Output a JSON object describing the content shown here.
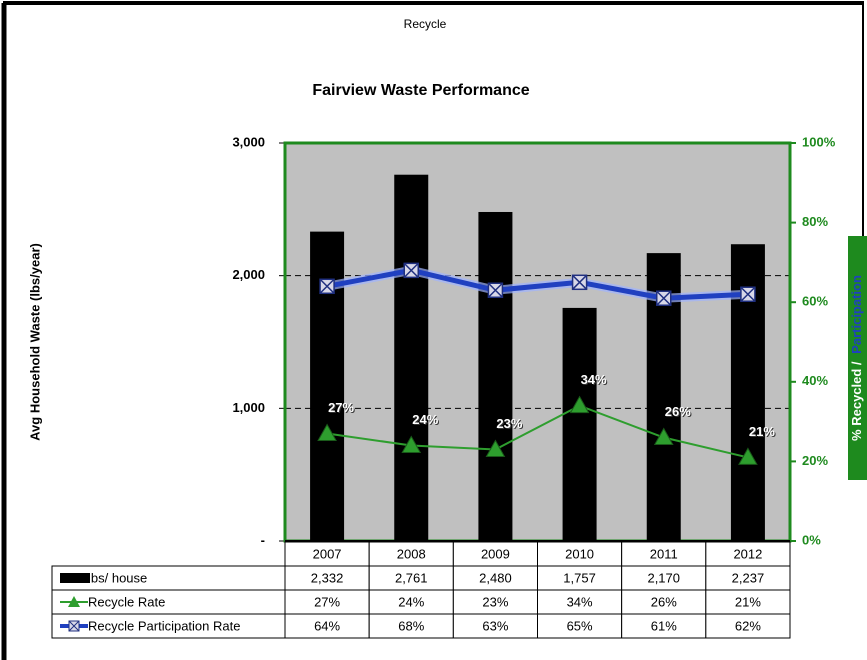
{
  "header": "Recycle",
  "chart_data": {
    "type": "bar",
    "title": "Fairview Waste Performance",
    "ylabel": "Avg Household Waste (lbs/year)",
    "y2label": [
      "% Recycled /",
      "Participation"
    ],
    "categories": [
      "2007",
      "2008",
      "2009",
      "2010",
      "2011",
      "2012"
    ],
    "series": [
      {
        "name": "lbs/ house",
        "type": "bar",
        "color": "#000000",
        "values": [
          2332,
          2761,
          2480,
          1757,
          2170,
          2237
        ],
        "value_labels": [
          "2,332",
          "2,761",
          "2,480",
          "1,757",
          "2,170",
          "2,237"
        ]
      },
      {
        "name": "Recycle Rate",
        "type": "line",
        "marker": "triangle",
        "color": "#2e9e2e",
        "axis": "y2",
        "values": [
          27,
          24,
          23,
          34,
          26,
          21
        ],
        "value_labels": [
          "27%",
          "24%",
          "23%",
          "34%",
          "26%",
          "21%"
        ]
      },
      {
        "name": "Recycle Participation Rate",
        "type": "line",
        "marker": "square-x",
        "color": "#2040c0",
        "axis": "y2",
        "values": [
          64,
          68,
          63,
          65,
          61,
          62
        ],
        "value_labels": [
          "64%",
          "68%",
          "63%",
          "65%",
          "61%",
          "62%"
        ]
      }
    ],
    "ylim": [
      0,
      3000
    ],
    "yticks": [
      {
        "value": 0,
        "label": "-"
      },
      {
        "value": 1000,
        "label": "1,000"
      },
      {
        "value": 2000,
        "label": "2,000"
      },
      {
        "value": 3000,
        "label": "3,000"
      }
    ],
    "y2lim": [
      0,
      100
    ],
    "y2ticks": [
      {
        "value": 0,
        "label": "0%"
      },
      {
        "value": 20,
        "label": "20%"
      },
      {
        "value": 40,
        "label": "40%"
      },
      {
        "value": 60,
        "label": "60%"
      },
      {
        "value": 80,
        "label": "80%"
      },
      {
        "value": 100,
        "label": "100%"
      }
    ],
    "grid": "dashed",
    "plot_color": "#c0c0c0"
  }
}
